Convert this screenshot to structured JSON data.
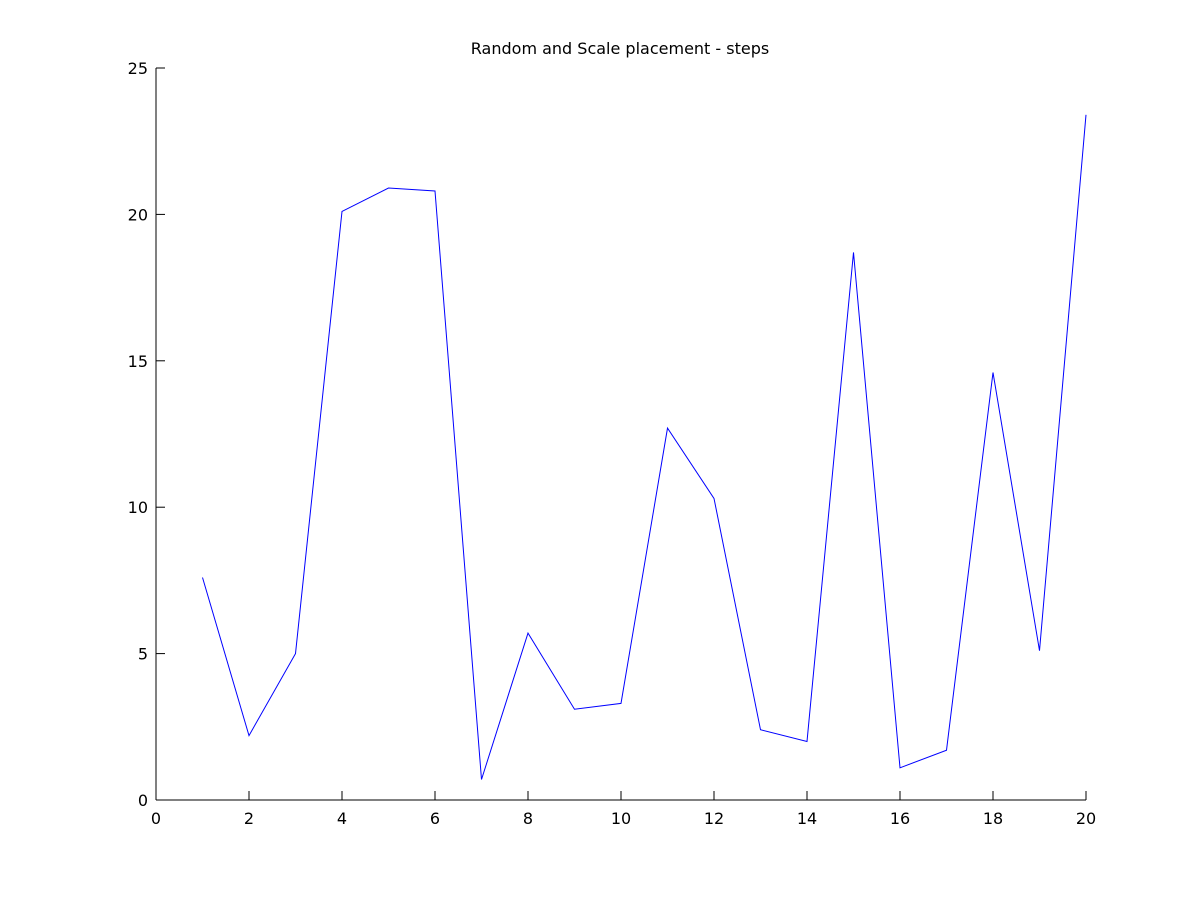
{
  "chart_data": {
    "type": "line",
    "title": "Random and Scale placement - steps",
    "xlabel": "",
    "ylabel": "",
    "xlim": [
      0,
      20
    ],
    "ylim": [
      0,
      25
    ],
    "xticks": [
      0,
      2,
      4,
      6,
      8,
      10,
      12,
      14,
      16,
      18,
      20
    ],
    "yticks": [
      0,
      5,
      10,
      15,
      20,
      25
    ],
    "grid": false,
    "legend": "none",
    "series": [
      {
        "color": "#0000ff",
        "x": [
          1,
          2,
          3,
          4,
          5,
          6,
          7,
          8,
          9,
          10,
          11,
          12,
          13,
          14,
          15,
          16,
          17,
          18,
          19,
          20
        ],
        "y": [
          7.6,
          2.2,
          5.0,
          20.1,
          20.9,
          20.8,
          0.7,
          5.7,
          3.1,
          3.3,
          12.7,
          10.3,
          2.4,
          2.0,
          18.7,
          1.1,
          1.7,
          14.6,
          5.1,
          23.4
        ]
      }
    ]
  }
}
